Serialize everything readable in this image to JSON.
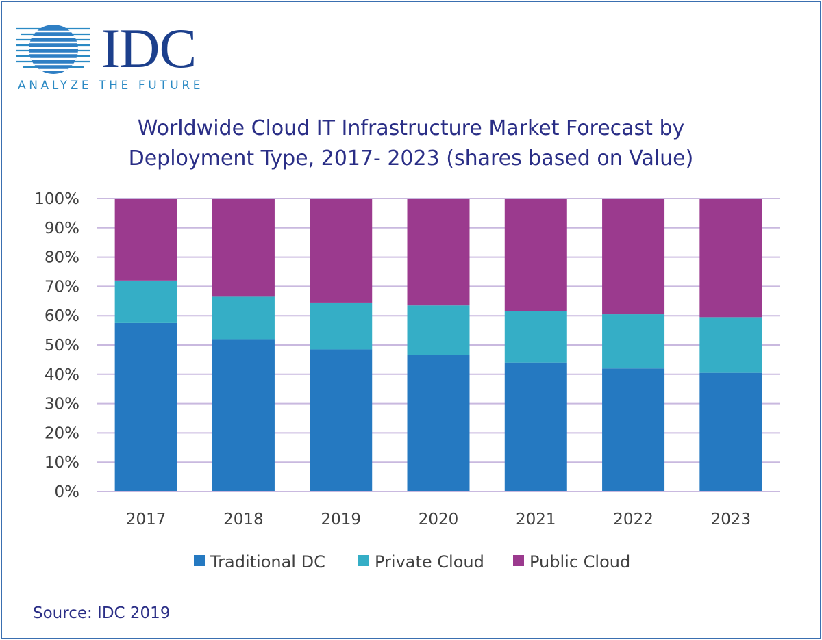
{
  "brand": {
    "name": "IDC",
    "tagline": "ANALYZE THE FUTURE"
  },
  "colors": {
    "traditional_dc": "#2579c1",
    "private_cloud": "#35aec6",
    "public_cloud": "#9b3a8e",
    "gridline": "#c9b9df",
    "title": "#2a2e86"
  },
  "chart_data": {
    "type": "bar",
    "stacked": true,
    "title_lines": [
      "Worldwide Cloud IT Infrastructure Market Forecast by",
      "Deployment Type, 2017- 2023 (shares based on Value)"
    ],
    "categories": [
      "2017",
      "2018",
      "2019",
      "2020",
      "2021",
      "2022",
      "2023"
    ],
    "series": [
      {
        "name": "Traditional DC",
        "values": [
          57.5,
          52,
          48.5,
          46.5,
          44,
          42,
          40.5
        ]
      },
      {
        "name": "Private Cloud",
        "values": [
          14.5,
          14.5,
          16,
          17,
          17.5,
          18.5,
          19
        ]
      },
      {
        "name": "Public Cloud",
        "values": [
          28,
          33.5,
          35.5,
          36.5,
          38.5,
          39.5,
          40.5
        ]
      }
    ],
    "y_ticks": [
      "0%",
      "10%",
      "20%",
      "30%",
      "40%",
      "50%",
      "60%",
      "70%",
      "80%",
      "90%",
      "100%"
    ],
    "ylim": [
      0,
      100
    ],
    "xlabel": "",
    "ylabel": "",
    "grid": true,
    "legend_position": "bottom"
  },
  "source": "Source: IDC 2019"
}
